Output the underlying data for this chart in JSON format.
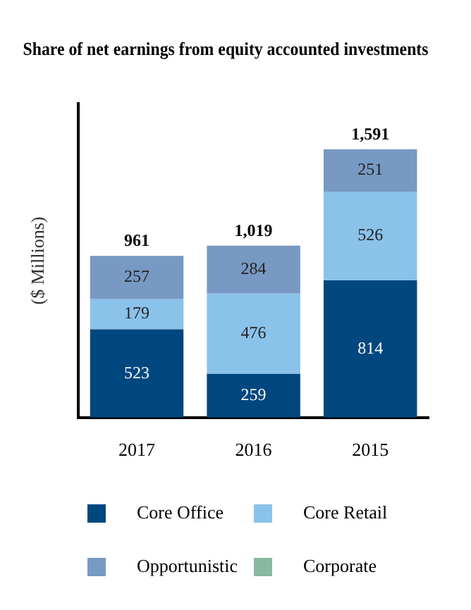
{
  "chart_data": {
    "type": "bar",
    "title": "Share of net earnings from equity accounted investments",
    "ylabel": "($ Millions)",
    "categories": [
      "2017",
      "2016",
      "2015"
    ],
    "stacked": true,
    "series": [
      {
        "name": "Core Office",
        "color": "#00477f",
        "values": [
          523,
          259,
          814
        ],
        "value_labels": [
          "523",
          "259",
          "814"
        ]
      },
      {
        "name": "Core Retail",
        "color": "#8ac2ea",
        "values": [
          179,
          476,
          526
        ],
        "value_labels": [
          "179",
          "476",
          "526"
        ]
      },
      {
        "name": "Opportunistic",
        "color": "#7799c3",
        "values": [
          257,
          284,
          251
        ],
        "value_labels": [
          "257",
          "284",
          "251"
        ]
      },
      {
        "name": "Corporate",
        "color": "#88b8a0",
        "values": [
          null,
          null,
          null
        ]
      }
    ],
    "totals": [
      "961",
      "1,019",
      "1,591"
    ],
    "legend": "bottom",
    "grid": false,
    "tick_labels": "x"
  }
}
